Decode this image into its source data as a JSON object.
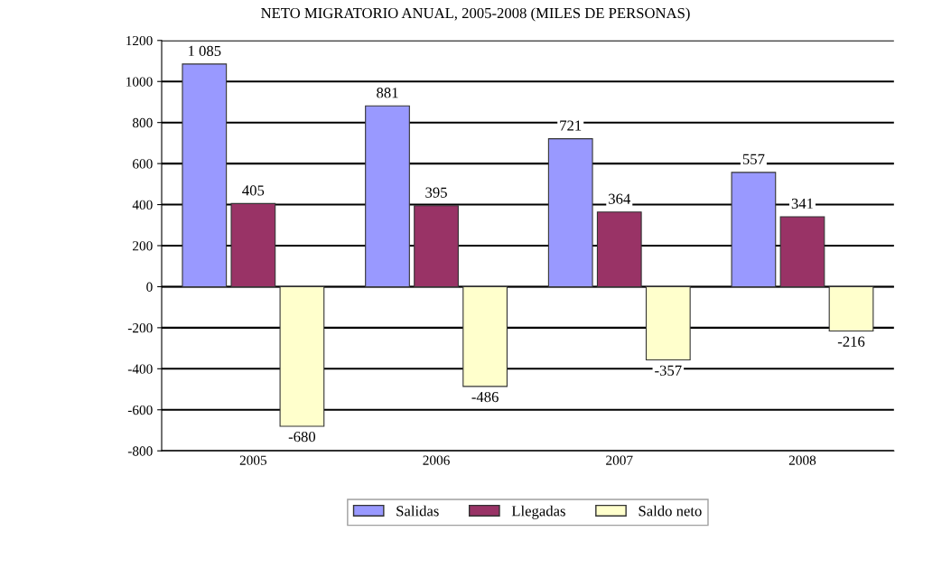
{
  "chart_data": {
    "type": "bar",
    "title": "NETO MIGRATORIO ANUAL, 2005-2008 (MILES DE PERSONAS)",
    "categories": [
      "2005",
      "2006",
      "2007",
      "2008"
    ],
    "series": [
      {
        "name": "Salidas",
        "color": "#9999ff",
        "values": [
          1085,
          881,
          721,
          557
        ],
        "value_labels": [
          "1 085",
          "881",
          "721",
          "557"
        ]
      },
      {
        "name": "Llegadas",
        "color": "#993366",
        "values": [
          405,
          395,
          364,
          341
        ],
        "value_labels": [
          "405",
          "395",
          "364",
          "341"
        ]
      },
      {
        "name": "Saldo neto",
        "color": "#ffffcc",
        "values": [
          -680,
          -486,
          -357,
          -216
        ],
        "value_labels": [
          "-680",
          "-486",
          "-357",
          "-216"
        ]
      }
    ],
    "ylim": [
      -800,
      1200
    ],
    "yticks": [
      -800,
      -600,
      -400,
      -200,
      0,
      200,
      400,
      600,
      800,
      1000,
      1200
    ],
    "grid": "y",
    "legend": "bottom"
  }
}
